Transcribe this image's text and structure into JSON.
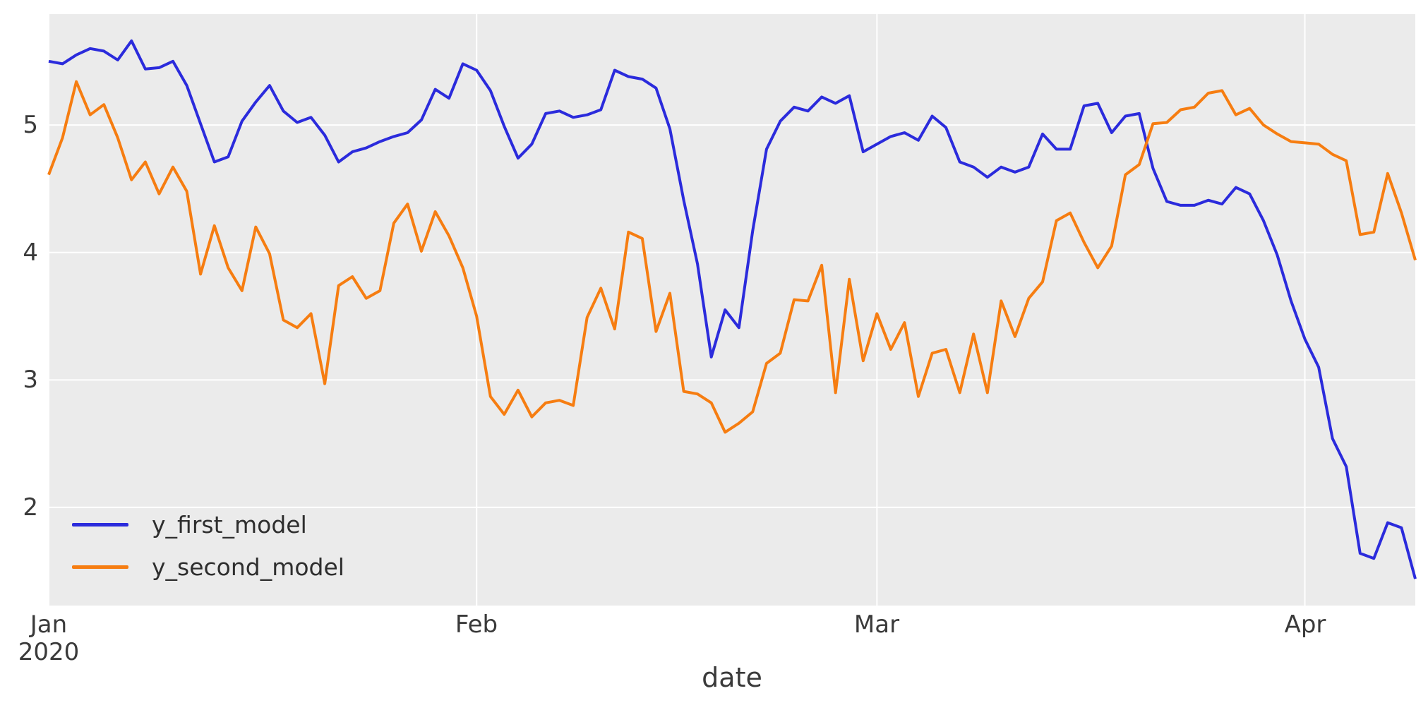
{
  "chart_data": {
    "type": "line",
    "title": "",
    "xlabel": "date",
    "ylabel": "",
    "x_start_date": "2020-01-01",
    "x_end_date": "2020-04-09",
    "x_frequency": "daily",
    "n_points": 100,
    "ylim": [
      1.23,
      5.87
    ],
    "grid": true,
    "plot_bg_color": "#ebebeb",
    "grid_color": "#ffffff",
    "legend_position": "lower left",
    "x_tick_labels": [
      {
        "label": "Jan",
        "sublabel": "2020",
        "day_index": 0
      },
      {
        "label": "Feb",
        "sublabel": "",
        "day_index": 31
      },
      {
        "label": "Mar",
        "sublabel": "",
        "day_index": 60
      },
      {
        "label": "Apr",
        "sublabel": "",
        "day_index": 91
      }
    ],
    "y_ticks": [
      {
        "label": "2",
        "value": 2
      },
      {
        "label": "3",
        "value": 3
      },
      {
        "label": "4",
        "value": 4
      },
      {
        "label": "5",
        "value": 5
      }
    ],
    "series": [
      {
        "name": "y_first_model",
        "color": "#2b2bdc",
        "values": [
          5.5,
          5.48,
          5.55,
          5.6,
          5.58,
          5.51,
          5.66,
          5.44,
          5.45,
          5.5,
          5.31,
          5.01,
          4.71,
          4.75,
          5.03,
          5.18,
          5.31,
          5.11,
          5.02,
          5.06,
          4.92,
          4.71,
          4.79,
          4.82,
          4.87,
          4.91,
          4.94,
          5.04,
          5.28,
          5.21,
          5.48,
          5.43,
          5.27,
          4.99,
          4.74,
          4.85,
          5.09,
          5.11,
          5.06,
          5.08,
          5.12,
          5.43,
          5.38,
          5.36,
          5.29,
          4.97,
          4.41,
          3.91,
          3.18,
          3.55,
          3.41,
          4.17,
          4.81,
          5.03,
          5.14,
          5.11,
          5.22,
          5.17,
          5.23,
          4.79,
          4.85,
          4.91,
          4.94,
          4.88,
          5.07,
          4.98,
          4.71,
          4.67,
          4.59,
          4.67,
          4.63,
          4.67,
          4.93,
          4.81,
          4.81,
          5.15,
          5.17,
          4.94,
          5.07,
          5.09,
          4.66,
          4.4,
          4.37,
          4.37,
          4.41,
          4.38,
          4.51,
          4.46,
          4.25,
          3.98,
          3.62,
          3.32,
          3.1,
          2.54,
          2.32,
          1.64,
          1.6,
          1.88,
          1.84,
          1.44
        ]
      },
      {
        "name": "y_second_model",
        "color": "#f67d11",
        "values": [
          4.61,
          4.9,
          5.34,
          5.08,
          5.16,
          4.9,
          4.57,
          4.71,
          4.46,
          4.67,
          4.48,
          3.83,
          4.21,
          3.88,
          3.7,
          4.2,
          3.99,
          3.47,
          3.41,
          3.52,
          2.97,
          3.74,
          3.81,
          3.64,
          3.7,
          4.23,
          4.38,
          4.01,
          4.32,
          4.13,
          3.88,
          3.5,
          2.87,
          2.73,
          2.92,
          2.71,
          2.82,
          2.84,
          2.8,
          3.49,
          3.72,
          3.4,
          4.16,
          4.11,
          3.38,
          3.68,
          2.91,
          2.89,
          2.82,
          2.59,
          2.66,
          2.75,
          3.13,
          3.21,
          3.63,
          3.62,
          3.9,
          2.9,
          3.79,
          3.15,
          3.52,
          3.24,
          3.45,
          2.87,
          3.21,
          3.24,
          2.9,
          3.36,
          2.9,
          3.62,
          3.34,
          3.64,
          3.77,
          4.25,
          4.31,
          4.08,
          3.88,
          4.05,
          4.61,
          4.69,
          5.01,
          5.02,
          5.12,
          5.14,
          5.25,
          5.27,
          5.08,
          5.13,
          5.0,
          4.93,
          4.87,
          4.86,
          4.85,
          4.77,
          4.72,
          4.14,
          4.16,
          4.62,
          4.31,
          3.94
        ]
      }
    ]
  },
  "legend": {
    "items": [
      {
        "label": "y_first_model",
        "color": "#2b2bdc"
      },
      {
        "label": "y_second_model",
        "color": "#f67d11"
      }
    ]
  },
  "axes": {
    "xlabel": "date"
  }
}
